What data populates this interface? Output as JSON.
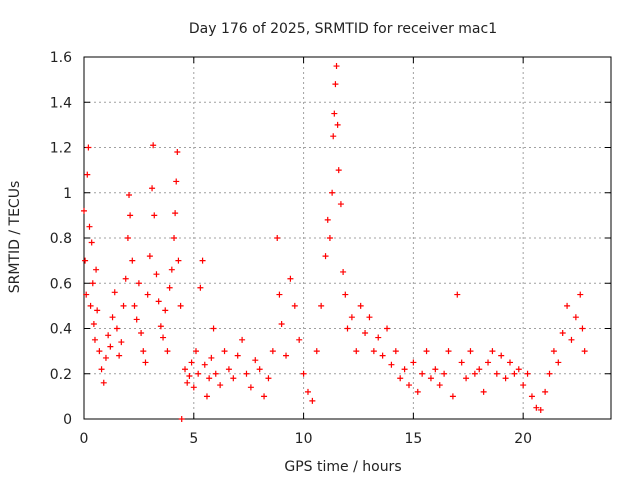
{
  "chart_data": {
    "type": "scatter",
    "title": "Day 176 of 2025, SRMTID for receiver mac1",
    "xlabel": "GPS time / hours",
    "ylabel": "SRMTID / TECUs",
    "xlim": [
      0,
      24
    ],
    "ylim": [
      0,
      1.6
    ],
    "xticks": [
      0,
      5,
      10,
      15,
      20
    ],
    "yticks": [
      0,
      0.2,
      0.4,
      0.6,
      0.8,
      1,
      1.2,
      1.4,
      1.6
    ],
    "xtick_labels": [
      "0",
      "5",
      "10",
      "15",
      "20"
    ],
    "ytick_labels": [
      "0",
      "0.2",
      "0.4",
      "0.6",
      "0.8",
      "1",
      "1.2",
      "1.4",
      "1.6"
    ],
    "grid": true,
    "marker": "+",
    "series": [
      {
        "name": "SRMTID",
        "color": "#ff0000",
        "points": [
          [
            0.0,
            0.92
          ],
          [
            0.05,
            0.7
          ],
          [
            0.1,
            0.55
          ],
          [
            0.15,
            1.08
          ],
          [
            0.2,
            1.2
          ],
          [
            0.25,
            0.85
          ],
          [
            0.3,
            0.5
          ],
          [
            0.35,
            0.78
          ],
          [
            0.4,
            0.6
          ],
          [
            0.45,
            0.42
          ],
          [
            0.5,
            0.35
          ],
          [
            0.55,
            0.66
          ],
          [
            0.6,
            0.48
          ],
          [
            0.7,
            0.3
          ],
          [
            0.8,
            0.22
          ],
          [
            0.9,
            0.16
          ],
          [
            1.0,
            0.27
          ],
          [
            1.1,
            0.37
          ],
          [
            1.2,
            0.32
          ],
          [
            1.3,
            0.45
          ],
          [
            1.4,
            0.56
          ],
          [
            1.5,
            0.4
          ],
          [
            1.6,
            0.28
          ],
          [
            1.7,
            0.34
          ],
          [
            1.8,
            0.5
          ],
          [
            1.9,
            0.62
          ],
          [
            2.0,
            0.8
          ],
          [
            2.05,
            0.99
          ],
          [
            2.1,
            0.9
          ],
          [
            2.2,
            0.7
          ],
          [
            2.3,
            0.5
          ],
          [
            2.4,
            0.44
          ],
          [
            2.5,
            0.6
          ],
          [
            2.6,
            0.38
          ],
          [
            2.7,
            0.3
          ],
          [
            2.8,
            0.25
          ],
          [
            2.9,
            0.55
          ],
          [
            3.0,
            0.72
          ],
          [
            3.1,
            1.02
          ],
          [
            3.15,
            1.21
          ],
          [
            3.2,
            0.9
          ],
          [
            3.3,
            0.64
          ],
          [
            3.4,
            0.52
          ],
          [
            3.5,
            0.41
          ],
          [
            3.6,
            0.36
          ],
          [
            3.7,
            0.48
          ],
          [
            3.8,
            0.3
          ],
          [
            3.9,
            0.58
          ],
          [
            4.0,
            0.66
          ],
          [
            4.1,
            0.8
          ],
          [
            4.15,
            0.91
          ],
          [
            4.2,
            1.05
          ],
          [
            4.25,
            1.18
          ],
          [
            4.3,
            0.7
          ],
          [
            4.4,
            0.5
          ],
          [
            4.45,
            0.0
          ],
          [
            4.6,
            0.22
          ],
          [
            4.7,
            0.16
          ],
          [
            4.8,
            0.19
          ],
          [
            4.9,
            0.25
          ],
          [
            5.0,
            0.14
          ],
          [
            5.1,
            0.3
          ],
          [
            5.2,
            0.2
          ],
          [
            5.3,
            0.58
          ],
          [
            5.4,
            0.7
          ],
          [
            5.5,
            0.24
          ],
          [
            5.6,
            0.1
          ],
          [
            5.7,
            0.18
          ],
          [
            5.8,
            0.27
          ],
          [
            5.9,
            0.4
          ],
          [
            6.0,
            0.2
          ],
          [
            6.2,
            0.15
          ],
          [
            6.4,
            0.3
          ],
          [
            6.6,
            0.22
          ],
          [
            6.8,
            0.18
          ],
          [
            7.0,
            0.28
          ],
          [
            7.2,
            0.35
          ],
          [
            7.4,
            0.2
          ],
          [
            7.6,
            0.14
          ],
          [
            7.8,
            0.26
          ],
          [
            8.0,
            0.22
          ],
          [
            8.2,
            0.1
          ],
          [
            8.4,
            0.18
          ],
          [
            8.6,
            0.3
          ],
          [
            8.8,
            0.8
          ],
          [
            8.9,
            0.55
          ],
          [
            9.0,
            0.42
          ],
          [
            9.2,
            0.28
          ],
          [
            9.4,
            0.62
          ],
          [
            9.6,
            0.5
          ],
          [
            9.8,
            0.35
          ],
          [
            10.0,
            0.2
          ],
          [
            10.2,
            0.12
          ],
          [
            10.4,
            0.08
          ],
          [
            10.6,
            0.3
          ],
          [
            10.8,
            0.5
          ],
          [
            11.0,
            0.72
          ],
          [
            11.1,
            0.88
          ],
          [
            11.2,
            0.8
          ],
          [
            11.3,
            1.0
          ],
          [
            11.35,
            1.25
          ],
          [
            11.4,
            1.35
          ],
          [
            11.45,
            1.48
          ],
          [
            11.5,
            1.56
          ],
          [
            11.55,
            1.3
          ],
          [
            11.6,
            1.1
          ],
          [
            11.7,
            0.95
          ],
          [
            11.8,
            0.65
          ],
          [
            11.9,
            0.55
          ],
          [
            12.0,
            0.4
          ],
          [
            12.2,
            0.45
          ],
          [
            12.4,
            0.3
          ],
          [
            12.6,
            0.5
          ],
          [
            12.8,
            0.38
          ],
          [
            13.0,
            0.45
          ],
          [
            13.2,
            0.3
          ],
          [
            13.4,
            0.36
          ],
          [
            13.6,
            0.28
          ],
          [
            13.8,
            0.4
          ],
          [
            14.0,
            0.24
          ],
          [
            14.2,
            0.3
          ],
          [
            14.4,
            0.18
          ],
          [
            14.6,
            0.22
          ],
          [
            14.8,
            0.15
          ],
          [
            15.0,
            0.25
          ],
          [
            15.2,
            0.12
          ],
          [
            15.4,
            0.2
          ],
          [
            15.6,
            0.3
          ],
          [
            15.8,
            0.18
          ],
          [
            16.0,
            0.22
          ],
          [
            16.2,
            0.15
          ],
          [
            16.4,
            0.2
          ],
          [
            16.6,
            0.3
          ],
          [
            16.8,
            0.1
          ],
          [
            17.0,
            0.55
          ],
          [
            17.2,
            0.25
          ],
          [
            17.4,
            0.18
          ],
          [
            17.6,
            0.3
          ],
          [
            17.8,
            0.2
          ],
          [
            18.0,
            0.22
          ],
          [
            18.2,
            0.12
          ],
          [
            18.4,
            0.25
          ],
          [
            18.6,
            0.3
          ],
          [
            18.8,
            0.2
          ],
          [
            19.0,
            0.28
          ],
          [
            19.2,
            0.18
          ],
          [
            19.4,
            0.25
          ],
          [
            19.6,
            0.2
          ],
          [
            19.8,
            0.22
          ],
          [
            20.0,
            0.15
          ],
          [
            20.2,
            0.2
          ],
          [
            20.4,
            0.1
          ],
          [
            20.6,
            0.05
          ],
          [
            20.8,
            0.04
          ],
          [
            21.0,
            0.12
          ],
          [
            21.2,
            0.2
          ],
          [
            21.4,
            0.3
          ],
          [
            21.6,
            0.25
          ],
          [
            21.8,
            0.38
          ],
          [
            22.0,
            0.5
          ],
          [
            22.2,
            0.35
          ],
          [
            22.4,
            0.45
          ],
          [
            22.6,
            0.55
          ],
          [
            22.7,
            0.4
          ],
          [
            22.8,
            0.3
          ]
        ]
      }
    ]
  }
}
